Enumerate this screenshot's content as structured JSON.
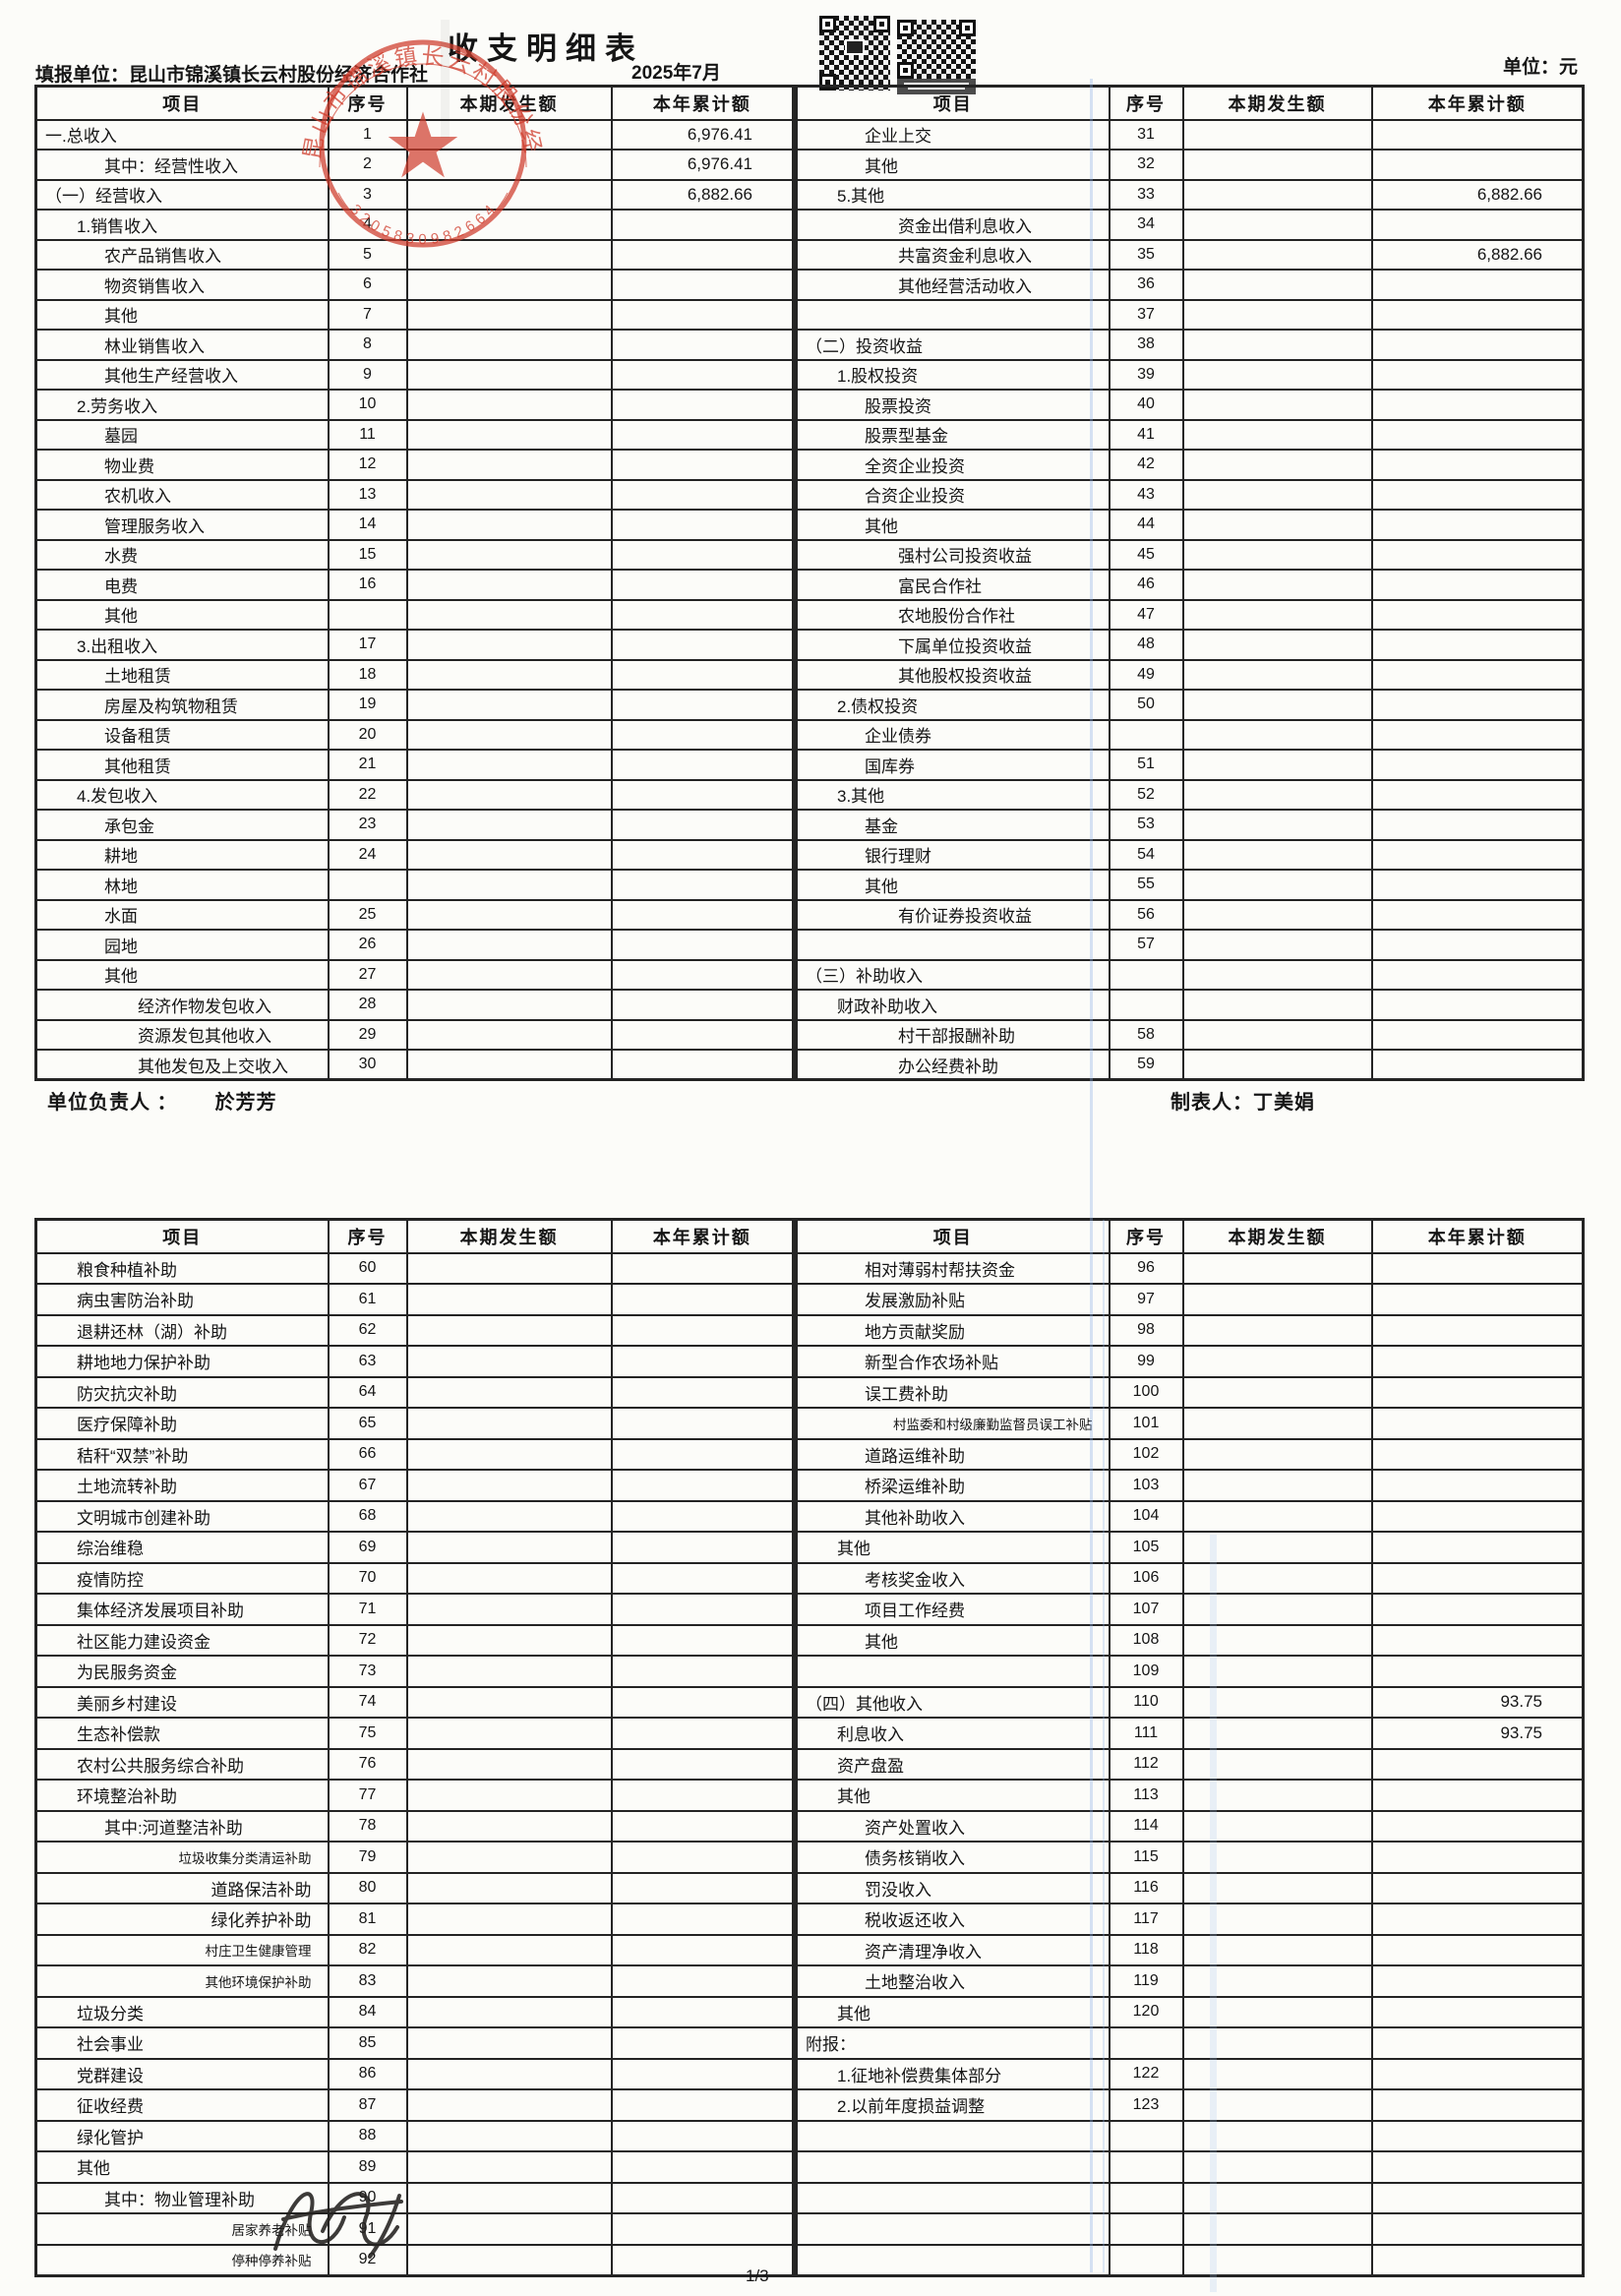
{
  "page": {
    "title": "收支明细表",
    "reporting_unit_label": "填报单位：",
    "reporting_unit": "昆山市锦溪镇长云村股份经济合作社",
    "period": "2025年7月",
    "unit_label": "单位：元",
    "responsible_label": "单位负责人 ：",
    "responsible_name": "於芳芳",
    "preparer_label": "制表人：",
    "preparer_name": "丁美娟",
    "page_number": "1/3"
  },
  "stamp": {
    "org_text": "昆山市锦溪镇长云村股份经济合作社",
    "serial": "3205830982664",
    "star_icon": "★",
    "color": "#cf3b2b"
  },
  "columns": [
    "项目",
    "序号",
    "本期发生额",
    "本年累计额"
  ],
  "table1": {
    "left": [
      {
        "item": "一.总收入",
        "no": "1",
        "cur": "",
        "ytd": "6,976.41",
        "ind": 0
      },
      {
        "item": "其中：经营性收入",
        "no": "2",
        "cur": "",
        "ytd": "6,976.41",
        "ind": 2
      },
      {
        "item": "（一）经营收入",
        "no": "3",
        "cur": "",
        "ytd": "6,882.66",
        "ind": 0
      },
      {
        "item": "1.销售收入",
        "no": "4",
        "ind": 1
      },
      {
        "item": "农产品销售收入",
        "no": "5",
        "ind": 2
      },
      {
        "item": "物资销售收入",
        "no": "6",
        "ind": 2
      },
      {
        "item": "其他",
        "no": "7",
        "ind": 2
      },
      {
        "item": "林业销售收入",
        "no": "8",
        "ind": 2
      },
      {
        "item": "其他生产经营收入",
        "no": "9",
        "ind": 2
      },
      {
        "item": "2.劳务收入",
        "no": "10",
        "ind": 1
      },
      {
        "item": "墓园",
        "no": "11",
        "ind": 2
      },
      {
        "item": "物业费",
        "no": "12",
        "ind": 2
      },
      {
        "item": "农机收入",
        "no": "13",
        "ind": 2
      },
      {
        "item": "管理服务收入",
        "no": "14",
        "ind": 2
      },
      {
        "item": "水费",
        "no": "15",
        "ind": 2
      },
      {
        "item": "电费",
        "no": "16",
        "ind": 2
      },
      {
        "item": "其他",
        "no": "",
        "ind": 2
      },
      {
        "item": "3.出租收入",
        "no": "17",
        "ind": 1
      },
      {
        "item": "土地租赁",
        "no": "18",
        "ind": 2
      },
      {
        "item": "房屋及构筑物租赁",
        "no": "19",
        "ind": 2
      },
      {
        "item": "设备租赁",
        "no": "20",
        "ind": 2
      },
      {
        "item": "其他租赁",
        "no": "21",
        "ind": 2
      },
      {
        "item": "4.发包收入",
        "no": "22",
        "ind": 1
      },
      {
        "item": "承包金",
        "no": "23",
        "ind": 2
      },
      {
        "item": "耕地",
        "no": "24",
        "ind": 2
      },
      {
        "item": "林地",
        "no": "",
        "ind": 2
      },
      {
        "item": "水面",
        "no": "25",
        "ind": 2
      },
      {
        "item": "园地",
        "no": "26",
        "ind": 2
      },
      {
        "item": "其他",
        "no": "27",
        "ind": 2
      },
      {
        "item": "经济作物发包收入",
        "no": "28",
        "ind": 3
      },
      {
        "item": "资源发包其他收入",
        "no": "29",
        "ind": 3
      },
      {
        "item": "其他发包及上交收入",
        "no": "30",
        "ind": 3
      }
    ],
    "right": [
      {
        "item": "企业上交",
        "no": "31",
        "ind": 2
      },
      {
        "item": "其他",
        "no": "32",
        "ind": 2
      },
      {
        "item": "5.其他",
        "no": "33",
        "cur": "",
        "ytd": "6,882.66",
        "ind": 1
      },
      {
        "item": "资金出借利息收入",
        "no": "34",
        "ind": 3
      },
      {
        "item": "共富资金利息收入",
        "no": "35",
        "cur": "",
        "ytd": "6,882.66",
        "ind": 3
      },
      {
        "item": "其他经营活动收入",
        "no": "36",
        "ind": 3
      },
      {
        "item": "",
        "no": "37"
      },
      {
        "item": "（二）投资收益",
        "no": "38",
        "ind": 0
      },
      {
        "item": "1.股权投资",
        "no": "39",
        "ind": 1
      },
      {
        "item": "股票投资",
        "no": "40",
        "ind": 2
      },
      {
        "item": "股票型基金",
        "no": "41",
        "ind": 2
      },
      {
        "item": "全资企业投资",
        "no": "42",
        "ind": 2
      },
      {
        "item": "合资企业投资",
        "no": "43",
        "ind": 2
      },
      {
        "item": "其他",
        "no": "44",
        "ind": 2
      },
      {
        "item": "强村公司投资收益",
        "no": "45",
        "ind": 3
      },
      {
        "item": "富民合作社",
        "no": "46",
        "ind": 3
      },
      {
        "item": "农地股份合作社",
        "no": "47",
        "ind": 3
      },
      {
        "item": "下属单位投资收益",
        "no": "48",
        "ind": 3
      },
      {
        "item": "其他股权投资收益",
        "no": "49",
        "ind": 3
      },
      {
        "item": "2.债权投资",
        "no": "50",
        "ind": 1
      },
      {
        "item": "企业债券",
        "no": "",
        "ind": 2
      },
      {
        "item": "国库券",
        "no": "51",
        "ind": 2
      },
      {
        "item": "3.其他",
        "no": "52",
        "ind": 1
      },
      {
        "item": "基金",
        "no": "53",
        "ind": 2
      },
      {
        "item": "银行理财",
        "no": "54",
        "ind": 2
      },
      {
        "item": "其他",
        "no": "55",
        "ind": 2
      },
      {
        "item": "有价证券投资收益",
        "no": "56",
        "ind": 3
      },
      {
        "item": "",
        "no": "57"
      },
      {
        "item": "（三）补助收入",
        "no": "",
        "ind": 0
      },
      {
        "item": "财政补助收入",
        "no": "",
        "ind": 1
      },
      {
        "item": "村干部报酬补助",
        "no": "58",
        "ind": 3
      },
      {
        "item": "办公经费补助",
        "no": "59",
        "ind": 3
      }
    ]
  },
  "table2": {
    "left": [
      {
        "item": "粮食种植补助",
        "no": "60",
        "ind": 1
      },
      {
        "item": "病虫害防治补助",
        "no": "61",
        "ind": 1
      },
      {
        "item": "退耕还林（湖）补助",
        "no": "62",
        "ind": 1
      },
      {
        "item": "耕地地力保护补助",
        "no": "63",
        "ind": 1
      },
      {
        "item": "防灾抗灾补助",
        "no": "64",
        "ind": 1
      },
      {
        "item": "医疗保障补助",
        "no": "65",
        "ind": 1
      },
      {
        "item": "秸秆“双禁”补助",
        "no": "66",
        "ind": 1
      },
      {
        "item": "土地流转补助",
        "no": "67",
        "ind": 1
      },
      {
        "item": "文明城市创建补助",
        "no": "68",
        "ind": 1
      },
      {
        "item": "综治维稳",
        "no": "69",
        "ind": 1
      },
      {
        "item": "疫情防控",
        "no": "70",
        "ind": 1
      },
      {
        "item": "集体经济发展项目补助",
        "no": "71",
        "ind": 1
      },
      {
        "item": "社区能力建设资金",
        "no": "72",
        "ind": 1
      },
      {
        "item": "为民服务资金",
        "no": "73",
        "ind": 1
      },
      {
        "item": "美丽乡村建设",
        "no": "74",
        "ind": 1
      },
      {
        "item": "生态补偿款",
        "no": "75",
        "ind": 1
      },
      {
        "item": "农村公共服务综合补助",
        "no": "76",
        "ind": 1
      },
      {
        "item": "环境整治补助",
        "no": "77",
        "ind": 1
      },
      {
        "item": "其中:河道整洁补助",
        "no": "78",
        "ind": 2
      },
      {
        "item": "垃圾收集分类清运补助",
        "no": "79",
        "ra": true,
        "sm": true
      },
      {
        "item": "道路保洁补助",
        "no": "80",
        "ra": true
      },
      {
        "item": "绿化养护补助",
        "no": "81",
        "ra": true
      },
      {
        "item": "村庄卫生健康管理",
        "no": "82",
        "ra": true,
        "sm": true
      },
      {
        "item": "其他环境保护补助",
        "no": "83",
        "ra": true,
        "sm": true
      },
      {
        "item": "垃圾分类",
        "no": "84",
        "ind": 1
      },
      {
        "item": "社会事业",
        "no": "85",
        "ind": 1
      },
      {
        "item": "党群建设",
        "no": "86",
        "ind": 1
      },
      {
        "item": "征收经费",
        "no": "87",
        "ind": 1
      },
      {
        "item": "绿化管护",
        "no": "88",
        "ind": 1
      },
      {
        "item": "其他",
        "no": "89",
        "ind": 1
      },
      {
        "item": "其中：物业管理补助",
        "no": "90",
        "ind": 2
      },
      {
        "item": "居家养老补贴",
        "no": "91",
        "ra": true,
        "sm": true
      },
      {
        "item": "停种停养补贴",
        "no": "92",
        "ra": true,
        "sm": true
      }
    ],
    "right": [
      {
        "item": "相对薄弱村帮扶资金",
        "no": "96",
        "ind": 2
      },
      {
        "item": "发展激励补贴",
        "no": "97",
        "ind": 2
      },
      {
        "item": "地方贡献奖励",
        "no": "98",
        "ind": 2
      },
      {
        "item": "新型合作农场补贴",
        "no": "99",
        "ind": 2
      },
      {
        "item": "误工费补助",
        "no": "100",
        "ind": 2
      },
      {
        "item": "村监委和村级廉勤监督员误工补贴",
        "no": "101",
        "ra": true,
        "sm": true
      },
      {
        "item": "道路运维补助",
        "no": "102",
        "ind": 2
      },
      {
        "item": "桥梁运维补助",
        "no": "103",
        "ind": 2
      },
      {
        "item": "其他补助收入",
        "no": "104",
        "ind": 2
      },
      {
        "item": "其他",
        "no": "105",
        "ind": 1
      },
      {
        "item": "考核奖金收入",
        "no": "106",
        "ind": 2
      },
      {
        "item": "项目工作经费",
        "no": "107",
        "ind": 2
      },
      {
        "item": "其他",
        "no": "108",
        "ind": 2
      },
      {
        "item": "",
        "no": "109"
      },
      {
        "item": "（四）其他收入",
        "no": "110",
        "cur": "",
        "ytd": "93.75",
        "ind": 0
      },
      {
        "item": "利息收入",
        "no": "111",
        "cur": "",
        "ytd": "93.75",
        "ind": 1
      },
      {
        "item": "资产盘盈",
        "no": "112",
        "ind": 1
      },
      {
        "item": "其他",
        "no": "113",
        "ind": 1
      },
      {
        "item": "资产处置收入",
        "no": "114",
        "ind": 2
      },
      {
        "item": "债务核销收入",
        "no": "115",
        "ind": 2
      },
      {
        "item": "罚没收入",
        "no": "116",
        "ind": 2
      },
      {
        "item": "税收返还收入",
        "no": "117",
        "ind": 2
      },
      {
        "item": "资产清理净收入",
        "no": "118",
        "ind": 2
      },
      {
        "item": "土地整治收入",
        "no": "119",
        "ind": 2
      },
      {
        "item": "其他",
        "no": "120",
        "ind": 1
      },
      {
        "item": "附报：",
        "no": "",
        "ind": 0
      },
      {
        "item": "1.征地补偿费集体部分",
        "no": "122",
        "ind": 1
      },
      {
        "item": "2.以前年度损益调整",
        "no": "123",
        "ind": 1
      },
      {
        "item": "",
        "no": ""
      },
      {
        "item": "",
        "no": ""
      },
      {
        "item": "",
        "no": ""
      },
      {
        "item": "",
        "no": ""
      },
      {
        "item": "",
        "no": ""
      }
    ]
  }
}
